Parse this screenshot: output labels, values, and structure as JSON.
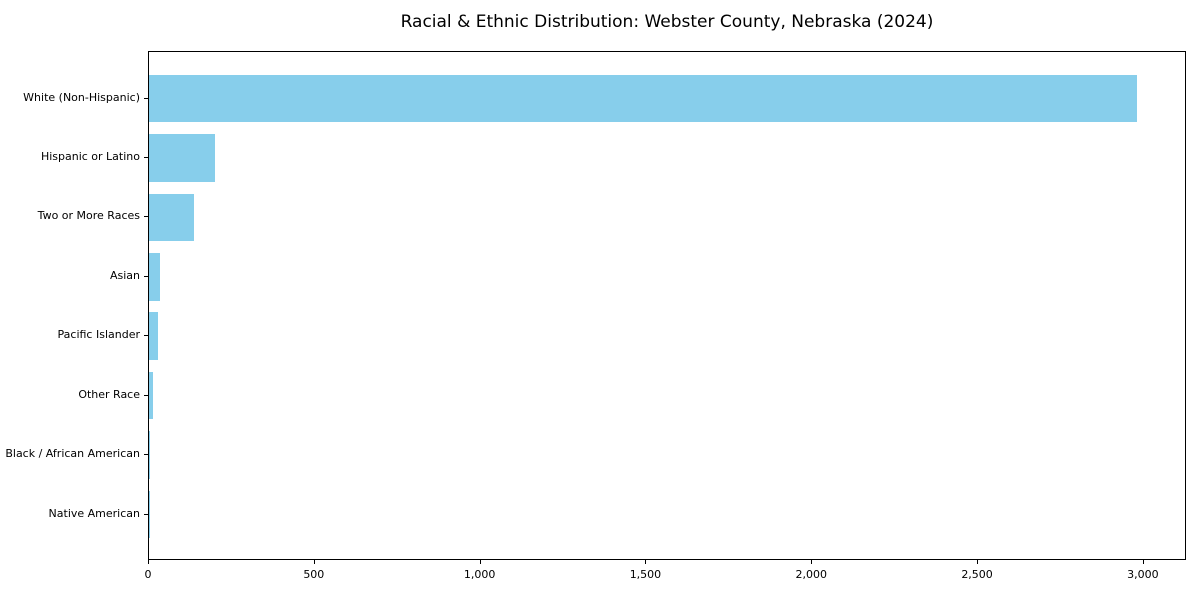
{
  "chart_data": {
    "type": "bar",
    "orientation": "horizontal",
    "title": "Racial & Ethnic Distribution: Webster County, Nebraska (2024)",
    "categories": [
      "White (Non-Hispanic)",
      "Hispanic or Latino",
      "Two or More Races",
      "Asian",
      "Pacific Islander",
      "Other Race",
      "Black / African American",
      "Native American"
    ],
    "values": [
      2980,
      198,
      135,
      33,
      27,
      12,
      4,
      3
    ],
    "xlabel": "",
    "ylabel": "",
    "x_ticks": [
      0,
      500,
      1000,
      1500,
      2000,
      2500,
      3000
    ],
    "x_tick_labels": [
      "0",
      "500",
      "1,000",
      "1,500",
      "2,000",
      "2,500",
      "3,000"
    ],
    "xlim": [
      0,
      3130
    ],
    "bar_color": "#87CEEB",
    "background_color": "#ffffff",
    "spine_color": "#000000",
    "grid": false,
    "legend": null
  }
}
